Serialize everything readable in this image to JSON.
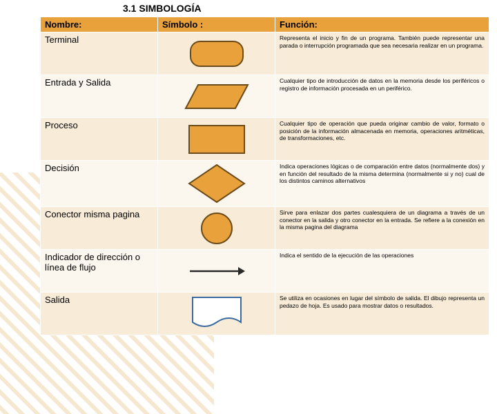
{
  "title": "3.1 SIMBOLOGÍA",
  "headers": {
    "nombre": "Nombre:",
    "simbolo": "Símbolo :",
    "funcion": "Función:"
  },
  "colors": {
    "header_bg": "#e9a23b",
    "row_odd": "#f8ecd9",
    "row_even": "#fbf6ee",
    "symbol_fill": "#e9a23b",
    "symbol_stroke": "#6b4a1a"
  },
  "rows": [
    {
      "name": "Terminal",
      "symbol": "terminal",
      "func": "Representa el inicio y fin de un programa. También puede representar una parada o interrupción programada que sea necesaria realizar en un programa."
    },
    {
      "name": "Entrada y Salida",
      "symbol": "io",
      "func": "Cualquier tipo de introducción de datos en la memoria desde los periféricos o registro de información procesada en un periférico."
    },
    {
      "name": "Proceso",
      "symbol": "process",
      "func": "Cualquier tipo de operación que pueda originar cambio de valor, formato o posición de la información almacenada en memoria, operaciones aritméticas, de transformaciones, etc."
    },
    {
      "name": "Decisión",
      "symbol": "decision",
      "func": "Indica operaciones lógicas o de comparación entre datos (normalmente dos) y en función del resultado de la misma determina (normalmente si y no) cual de los distintos caminos alternativos"
    },
    {
      "name": "Conector misma pagina",
      "symbol": "connector",
      "func": "Sirve para enlazar dos partes cualesquiera de un diagrama a través de un conector en la salida y otro conector en la entrada. Se refiere a la conexión en la misma pagina del diagrama"
    },
    {
      "name": "Indicador de dirección o línea de flujo",
      "symbol": "arrow",
      "func": "Indica el sentido de la ejecución de las operaciones"
    },
    {
      "name": "Salida",
      "symbol": "output",
      "func": "Se utiliza en ocasiones en lugar del símbolo de salida. El dibujo representa un pedazo de hoja. Es usado para mostrar datos o resultados."
    }
  ],
  "symbols": {
    "terminal": {
      "w": 76,
      "h": 36,
      "rx": 14,
      "fill": "#e9a23b",
      "stroke": "#6b4a1a",
      "sw": 2
    },
    "io": {
      "w": 90,
      "h": 34,
      "skew": 18,
      "fill": "#e9a23b",
      "stroke": "#6b4a1a",
      "sw": 2
    },
    "process": {
      "w": 80,
      "h": 40,
      "fill": "#e9a23b",
      "stroke": "#6b4a1a",
      "sw": 2
    },
    "decision": {
      "w": 80,
      "h": 54,
      "fill": "#e9a23b",
      "stroke": "#6b4a1a",
      "sw": 2
    },
    "connector": {
      "r": 22,
      "fill": "#e9a23b",
      "stroke": "#6b4a1a",
      "sw": 2
    },
    "arrow": {
      "len": 74,
      "stroke": "#2a2a2a",
      "sw": 2.5,
      "head": 10
    },
    "output": {
      "w": 70,
      "h": 44,
      "fill": "#ffffff",
      "stroke": "#3a6aa0",
      "sw": 2
    }
  }
}
